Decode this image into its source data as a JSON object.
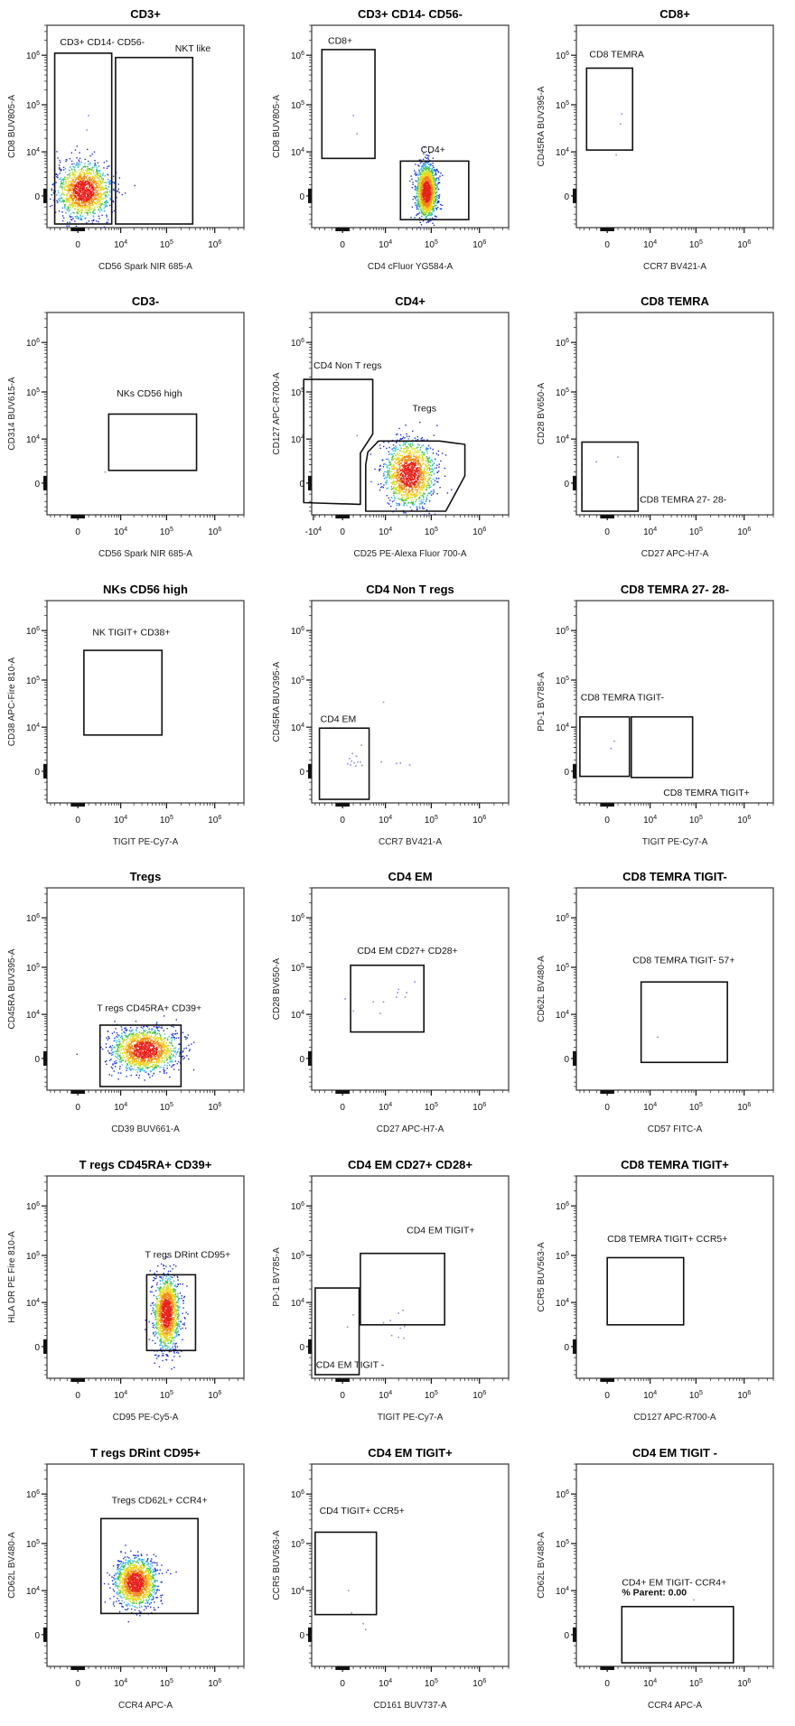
{
  "chart_data": [
    {
      "type": "scatter",
      "title": "CD3+",
      "xlabel": "CD56 Spark NIR 685-A",
      "ylabel": "CD8 BUV805-A",
      "x_ticks": [
        "0",
        "10^4",
        "10^5",
        "10^6"
      ],
      "y_ticks": [
        "0",
        "10^4",
        "10^5",
        "10^6"
      ],
      "x_has_neg_tick": false,
      "populations": [
        {
          "cx": 500,
          "cy": 400,
          "sx": 0.45,
          "sy": 0.45,
          "density": "high"
        }
      ],
      "scatter_points": [
        [
          1000,
          60000
        ],
        [
          800,
          30000
        ]
      ],
      "gates": [
        {
          "name": "CD3+ CD14- CD56-",
          "shape": "rect",
          "x": [
            -3000,
            6000
          ],
          "y": [
            -4000,
            1100000
          ],
          "label_at": [
            -2000,
            1600000
          ]
        },
        {
          "name": "NKT like",
          "shape": "rect",
          "x": [
            7500,
            350000
          ],
          "y": [
            -4000,
            900000
          ],
          "label_at": [
            150000,
            1200000
          ]
        }
      ]
    },
    {
      "type": "scatter",
      "title": "CD3+ CD14- CD56-",
      "xlabel": "CD4 cFluor YG584-A",
      "ylabel": "CD8 BUV805-A",
      "x_ticks": [
        "0",
        "10^4",
        "10^5",
        "10^6"
      ],
      "y_ticks": [
        "0",
        "10^4",
        "10^5",
        "10^6"
      ],
      "x_has_neg_tick": false,
      "populations": [
        {
          "cx": 80000,
          "cy": 300,
          "sx": 0.18,
          "sy": 0.45,
          "density": "high"
        }
      ],
      "scatter_points": [
        [
          1000,
          60000
        ],
        [
          1500,
          25000
        ]
      ],
      "gates": [
        {
          "name": "CD8+",
          "shape": "rect",
          "x": [
            -2500,
            5500
          ],
          "y": [
            7000,
            1300000
          ],
          "label_at": [
            -1500,
            1700000
          ]
        },
        {
          "name": "CD4+",
          "shape": "rect",
          "x": [
            22000,
            600000
          ],
          "y": [
            -3000,
            6000
          ],
          "label_at": [
            60000,
            9500
          ]
        }
      ]
    },
    {
      "type": "scatter",
      "title": "CD8+",
      "xlabel": "CCR7 BV421-A",
      "ylabel": "CD45RA BUV395-A",
      "x_ticks": [
        "0",
        "10^4",
        "10^5",
        "10^6"
      ],
      "y_ticks": [
        "0",
        "10^4",
        "10^5",
        "10^6"
      ],
      "x_has_neg_tick": false,
      "populations": [],
      "scatter_points": [
        [
          1500,
          65000
        ],
        [
          1300,
          40000
        ],
        [
          800,
          8500
        ]
      ],
      "gates": [
        {
          "name": "CD8 TEMRA",
          "shape": "rect",
          "x": [
            -2500,
            3500
          ],
          "y": [
            11000,
            550000
          ],
          "label_at": [
            -2000,
            900000
          ]
        }
      ]
    },
    {
      "type": "scatter",
      "title": "CD3-",
      "xlabel": "CD56 Spark NIR 685-A",
      "ylabel": "CD314 BUV615-A",
      "x_ticks": [
        "0",
        "10^4",
        "10^5",
        "10^6"
      ],
      "y_ticks": [
        "0",
        "10^4",
        "10^5",
        "10^6"
      ],
      "x_has_neg_tick": false,
      "populations": [],
      "scatter_points": [
        [
          4000,
          1000
        ]
      ],
      "gates": [
        {
          "name": "NKs CD56 high",
          "shape": "rect",
          "x": [
            5000,
            420000
          ],
          "y": [
            1200,
            35000
          ],
          "label_at": [
            8000,
            80000
          ]
        }
      ]
    },
    {
      "type": "scatter",
      "title": "CD4+",
      "xlabel": "CD25 PE-Alexa Fluor 700-A",
      "ylabel": "CD127 APC-R700-A",
      "x_ticks": [
        "-10^4",
        "0",
        "10^4",
        "10^5",
        "10^6"
      ],
      "y_ticks": [
        "0",
        "10^4",
        "10^5",
        "10^6"
      ],
      "x_has_neg_tick": true,
      "populations": [
        {
          "cx": 35000,
          "cy": 800,
          "sx": 0.42,
          "sy": 0.55,
          "density": "high"
        }
      ],
      "scatter_points": [
        [
          1500,
          12000
        ]
      ],
      "gates": [
        {
          "name": "CD4 Non T regs",
          "shape": "polygon",
          "points": [
            [
              -8000,
              180000
            ],
            [
              4800,
              180000
            ],
            [
              4800,
              13000
            ],
            [
              2000,
              4500
            ],
            [
              2000,
              -2500
            ],
            [
              -8000,
              -2200
            ]
          ],
          "label_at": [
            -8000,
            300000
          ]
        },
        {
          "name": "Tregs",
          "shape": "polygon",
          "points": [
            [
              3500,
              4800
            ],
            [
              6800,
              9000
            ],
            [
              150000,
              9000
            ],
            [
              500000,
              7500
            ],
            [
              500000,
              600
            ],
            [
              200000,
              -4000
            ],
            [
              3000,
              -4000
            ],
            [
              3000,
              2000
            ]
          ],
          "label_at": [
            40000,
            40000
          ]
        }
      ]
    },
    {
      "type": "scatter",
      "title": "CD8 TEMRA",
      "xlabel": "CD27 APC-H7-A",
      "ylabel": "CD28 BV650-A",
      "x_ticks": [
        "0",
        "10^4",
        "10^5",
        "10^6"
      ],
      "y_ticks": [
        "0",
        "10^4",
        "10^5",
        "10^6"
      ],
      "x_has_neg_tick": false,
      "populations": [],
      "scatter_points": [
        [
          -1000,
          2500
        ],
        [
          1000,
          3500
        ]
      ],
      "gates": [
        {
          "name": "CD8 TEMRA 27- 28-",
          "shape": "rect",
          "x": [
            -3500,
            5000
          ],
          "y": [
            -4000,
            8500
          ],
          "label_at": [
            5500,
            -2200
          ]
        }
      ]
    },
    {
      "type": "scatter",
      "title": "NKs CD56 high",
      "xlabel": "TIGIT PE-Cy7-A",
      "ylabel": "CD38 APC-Fire 810-A",
      "x_ticks": [
        "0",
        "10^4",
        "10^5",
        "10^6"
      ],
      "y_ticks": [
        "0",
        "10^4",
        "10^5",
        "10^6"
      ],
      "x_has_neg_tick": false,
      "populations": [],
      "scatter_points": [],
      "gates": [
        {
          "name": "NK TIGIT+ CD38+",
          "shape": "rect",
          "x": [
            500,
            80000
          ],
          "y": [
            6500,
            400000
          ],
          "label_at": [
            1500,
            800000
          ]
        }
      ]
    },
    {
      "type": "scatter",
      "title": "CD4 Non T regs",
      "xlabel": "CCR7 BV421-A",
      "ylabel": "CD45RA BUV395-A",
      "x_ticks": [
        "0",
        "10^4",
        "10^5",
        "10^6"
      ],
      "y_ticks": [
        "0",
        "10^4",
        "10^5",
        "10^6"
      ],
      "x_has_neg_tick": false,
      "populations": [],
      "scatter_points": [
        [
          9000,
          35000
        ],
        [
          2200,
          3500
        ],
        [
          900,
          1900
        ],
        [
          1400,
          1500
        ],
        [
          600,
          1200
        ],
        [
          800,
          900
        ],
        [
          1600,
          800
        ],
        [
          1100,
          700
        ],
        [
          2000,
          800
        ],
        [
          700,
          500
        ],
        [
          400,
          600
        ],
        [
          1300,
          400
        ],
        [
          2300,
          450
        ],
        [
          8000,
          800
        ],
        [
          18000,
          650
        ],
        [
          22000,
          700
        ],
        [
          35000,
          500
        ]
      ],
      "gates": [
        {
          "name": "CD4 EM",
          "shape": "rect",
          "x": [
            -3000,
            3800
          ],
          "y": [
            -4000,
            9500
          ],
          "label_at": [
            -2800,
            13000
          ]
        }
      ]
    },
    {
      "type": "scatter",
      "title": "CD8 TEMRA 27- 28-",
      "xlabel": "TIGIT PE-Cy7-A",
      "ylabel": "PD-1 BV785-A",
      "x_ticks": [
        "0",
        "10^4",
        "10^5",
        "10^6"
      ],
      "y_ticks": [
        "0",
        "10^4",
        "10^5",
        "10^6"
      ],
      "x_has_neg_tick": false,
      "populations": [],
      "scatter_points": [
        [
          600,
          4500
        ],
        [
          300,
          2800
        ]
      ],
      "gates": [
        {
          "name": "CD8 TEMRA TIGIT-",
          "shape": "rect",
          "x": [
            -4000,
            2800
          ],
          "y": [
            -400,
            17000
          ],
          "label_at": [
            -3800,
            38000
          ]
        },
        {
          "name": "CD8 TEMRA TIGIT+",
          "shape": "rect",
          "x": [
            3200,
            85000
          ],
          "y": [
            -500,
            17000
          ],
          "label_at": [
            20000,
            -3200
          ]
        }
      ]
    },
    {
      "type": "scatter",
      "title": "Tregs",
      "xlabel": "CD39 BUV661-A",
      "ylabel": "CD45RA BUV395-A",
      "x_ticks": [
        "0",
        "10^4",
        "10^5",
        "10^6"
      ],
      "y_ticks": [
        "0",
        "10^4",
        "10^5",
        "10^6"
      ],
      "x_has_neg_tick": false,
      "populations": [
        {
          "cx": 35000,
          "cy": 700,
          "sx": 0.55,
          "sy": 0.35,
          "density": "high"
        }
      ],
      "scatter_points": [],
      "gates": [
        {
          "name": "T regs CD45RA+ CD39+",
          "shape": "rect",
          "x": [
            2800,
            200000
          ],
          "y": [
            -4000,
            5500
          ],
          "label_at": [
            2200,
            12000
          ]
        }
      ]
    },
    {
      "type": "scatter",
      "title": "CD4 EM",
      "xlabel": "CD27 APC-H7-A",
      "ylabel": "CD28 BV650-A",
      "x_ticks": [
        "0",
        "10^4",
        "10^5",
        "10^6"
      ],
      "y_ticks": [
        "0",
        "10^4",
        "10^5",
        "10^6"
      ],
      "x_has_neg_tick": false,
      "populations": [],
      "scatter_points": [
        [
          200,
          22000
        ],
        [
          1000,
          12000
        ],
        [
          5000,
          19000
        ],
        [
          9000,
          19000
        ],
        [
          7500,
          10500
        ],
        [
          18000,
          24000
        ],
        [
          20000,
          35000
        ],
        [
          19000,
          30000
        ],
        [
          28000,
          24000
        ],
        [
          30000,
          30000
        ],
        [
          45000,
          50000
        ]
      ],
      "gates": [
        {
          "name": "CD4 EM CD27+ CD28+",
          "shape": "rect",
          "x": [
            700,
            70000
          ],
          "y": [
            3600,
            110000
          ],
          "label_at": [
            1500,
            190000
          ]
        }
      ]
    },
    {
      "type": "scatter",
      "title": "CD8 TEMRA TIGIT-",
      "xlabel": "CD57 FITC-A",
      "ylabel": "CD62L BV480-A",
      "x_ticks": [
        "0",
        "10^4",
        "10^5",
        "10^6"
      ],
      "y_ticks": [
        "0",
        "10^4",
        "10^5",
        "10^6"
      ],
      "x_has_neg_tick": false,
      "populations": [],
      "scatter_points": [
        [
          15000,
          2500
        ]
      ],
      "gates": [
        {
          "name": "CD8 TEMRA  TIGIT- 57+",
          "shape": "rect",
          "x": [
            6000,
            450000
          ],
          "y": [
            -300,
            50000
          ],
          "label_at": [
            3500,
            120000
          ]
        }
      ]
    },
    {
      "type": "scatter",
      "title": "T regs CD45RA+ CD39+",
      "xlabel": "CD95 PE-Cy5-A",
      "ylabel": "HLA DR PE Fire 810-A",
      "x_ticks": [
        "0",
        "10^4",
        "10^5",
        "10^6"
      ],
      "y_ticks": [
        "0",
        "10^4",
        "10^5",
        "10^6"
      ],
      "x_has_neg_tick": false,
      "populations": [
        {
          "cx": 100000,
          "cy": 5500,
          "sx": 0.22,
          "sy": 0.6,
          "density": "high"
        }
      ],
      "scatter_points": [],
      "gates": [
        {
          "name": "T regs DRint CD95+",
          "shape": "rect",
          "x": [
            38000,
            400000
          ],
          "y": [
            -300,
            40000
          ],
          "label_at": [
            35000,
            90000
          ]
        }
      ]
    },
    {
      "type": "scatter",
      "title": "CD4 EM CD27+ CD28+",
      "xlabel": "TIGIT PE-Cy7-A",
      "ylabel": "PD-1 BV785-A",
      "x_ticks": [
        "0",
        "10^4",
        "10^5",
        "10^6"
      ],
      "y_ticks": [
        "0",
        "10^4",
        "10^5",
        "10^6"
      ],
      "x_has_neg_tick": false,
      "populations": [],
      "scatter_points": [
        [
          1000,
          5000
        ],
        [
          400,
          2200
        ],
        [
          9000,
          3000
        ],
        [
          13000,
          3500
        ],
        [
          20000,
          5500
        ],
        [
          25000,
          6500
        ],
        [
          22000,
          2000
        ],
        [
          27000,
          2300
        ],
        [
          14000,
          1000
        ],
        [
          20000,
          800
        ],
        [
          26000,
          700
        ]
      ],
      "gates": [
        {
          "name": "CD4 EM TIGIT+",
          "shape": "rect",
          "x": [
            2000,
            190000
          ],
          "y": [
            2600,
            110000
          ],
          "label_at": [
            30000,
            280000
          ]
        },
        {
          "name": "CD4 EM TIGIT -",
          "shape": "rect",
          "x": [
            -4000,
            1800
          ],
          "y": [
            -4000,
            21000
          ],
          "label_at": [
            -3800,
            -2500
          ]
        }
      ]
    },
    {
      "type": "scatter",
      "title": "CD8 TEMRA TIGIT+",
      "xlabel": "CD127 APC-R700-A",
      "ylabel": "CCR5 BUV563-A",
      "x_ticks": [
        "0",
        "10^4",
        "10^5",
        "10^6"
      ],
      "y_ticks": [
        "0",
        "10^4",
        "10^5",
        "10^6"
      ],
      "x_has_neg_tick": false,
      "populations": [],
      "scatter_points": [],
      "gates": [
        {
          "name": "CD8 TEMRA TIGIT+ CCR5+",
          "shape": "rect",
          "x": [
            0,
            55000
          ],
          "y": [
            2600,
            90000
          ],
          "label_at": [
            0,
            190000
          ]
        }
      ]
    },
    {
      "type": "scatter",
      "title": "T regs DRint CD95+",
      "xlabel": "CCR4 APC-A",
      "ylabel": "CD62L BV480-A",
      "x_ticks": [
        "0",
        "10^4",
        "10^5",
        "10^6"
      ],
      "y_ticks": [
        "0",
        "10^4",
        "10^5",
        "10^6"
      ],
      "x_has_neg_tick": false,
      "populations": [
        {
          "cx": 22000,
          "cy": 15000,
          "sx": 0.35,
          "sy": 0.4,
          "density": "high"
        }
      ],
      "scatter_points": [],
      "gates": [
        {
          "name": "Tregs CD62L+ CCR4+",
          "shape": "rect",
          "x": [
            3000,
            450000
          ],
          "y": [
            2500,
            320000
          ],
          "label_at": [
            6000,
            650000
          ]
        }
      ]
    },
    {
      "type": "scatter",
      "title": "CD4 EM TIGIT+",
      "xlabel": "CD161 BUV737-A",
      "ylabel": "CCR5 BUV563-A",
      "x_ticks": [
        "0",
        "10^4",
        "10^5",
        "10^6"
      ],
      "y_ticks": [
        "0",
        "10^4",
        "10^5",
        "10^6"
      ],
      "x_has_neg_tick": false,
      "populations": [],
      "scatter_points": [
        [
          500,
          10000
        ],
        [
          800,
          2600
        ],
        [
          2500,
          1000
        ],
        [
          3000,
          400
        ]
      ],
      "gates": [
        {
          "name": "CD4 TIGIT+ CCR5+",
          "shape": "rect",
          "x": [
            -4000,
            6000
          ],
          "y": [
            2300,
            170000
          ],
          "label_at": [
            -3000,
            400000
          ]
        }
      ]
    },
    {
      "type": "scatter",
      "title": "CD4 EM TIGIT -",
      "xlabel": "CCR4 APC-A",
      "ylabel": "CD62L BV480-A",
      "x_ticks": [
        "0",
        "10^4",
        "10^5",
        "10^6"
      ],
      "y_ticks": [
        "0",
        "10^4",
        "10^5",
        "10^6"
      ],
      "x_has_neg_tick": false,
      "populations": [],
      "scatter_points": [
        [
          90000,
          6000
        ]
      ],
      "gates": [
        {
          "name": "CD4+ EM TIGIT- CCR4+",
          "shape": "rect",
          "x": [
            1500,
            600000
          ],
          "y": [
            -4000,
            4000
          ],
          "label_at": [
            1500,
            13000
          ],
          "stat": "% Parent: 0.00"
        }
      ]
    }
  ],
  "colors": {
    "frame": "#444444",
    "gate": "#111111",
    "density": [
      "#1a2bd6",
      "#2f8fe8",
      "#34c9e0",
      "#3fbf3f",
      "#c8e026",
      "#f6d01b",
      "#f08a16",
      "#e8221c"
    ]
  }
}
